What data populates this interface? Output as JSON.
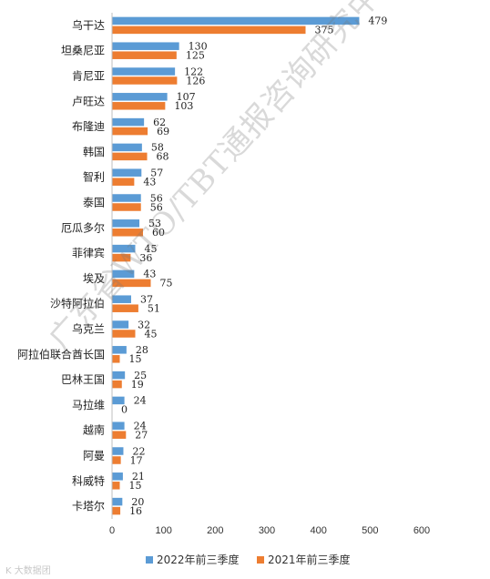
{
  "watermark": "广东省WTO/TBT通报咨询研究中心",
  "footer_mark": "K 大数据团",
  "chart_data": {
    "type": "bar",
    "orientation": "horizontal",
    "categories": [
      "乌干达",
      "坦桑尼亚",
      "肯尼亚",
      "卢旺达",
      "布隆迪",
      "韩国",
      "智利",
      "泰国",
      "厄瓜多尔",
      "菲律宾",
      "埃及",
      "沙特阿拉伯",
      "乌克兰",
      "阿拉伯联合酋长国",
      "巴林王国",
      "马拉维",
      "越南",
      "阿曼",
      "科威特",
      "卡塔尔"
    ],
    "series": [
      {
        "name": "2022年前三季度",
        "color": "#5b9bd5",
        "values": [
          479,
          130,
          122,
          107,
          62,
          58,
          57,
          56,
          53,
          45,
          43,
          37,
          32,
          28,
          25,
          24,
          24,
          22,
          21,
          20
        ]
      },
      {
        "name": "2021年前三季度",
        "color": "#ed7d31",
        "values": [
          375,
          125,
          126,
          103,
          69,
          68,
          43,
          56,
          60,
          36,
          75,
          51,
          45,
          15,
          19,
          0,
          27,
          17,
          15,
          16
        ]
      }
    ],
    "xlim": [
      0,
      600
    ],
    "xticks": [
      0,
      100,
      200,
      300,
      400,
      500,
      600
    ],
    "grid": false,
    "legend_position": "bottom"
  }
}
